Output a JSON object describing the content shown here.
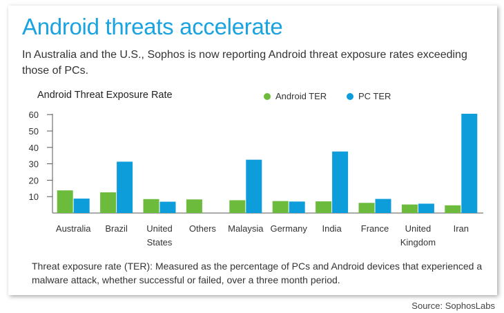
{
  "header": {
    "title": "Android threats accelerate",
    "subtitle": "In Australia and the U.S., Sophos is now reporting Android threat exposure rates exceeding those of PCs."
  },
  "chart_data": {
    "type": "bar",
    "title": "Android Threat Exposure Rate",
    "categories": [
      [
        "Australia"
      ],
      [
        "Brazil"
      ],
      [
        "United",
        "States"
      ],
      [
        "Others"
      ],
      [
        "Malaysia"
      ],
      [
        "Germany"
      ],
      [
        "India"
      ],
      [
        "France"
      ],
      [
        "United",
        "Kingdom"
      ],
      [
        "Iran"
      ]
    ],
    "series": [
      {
        "name": "Android TER",
        "color": "#6cbb3c",
        "values": [
          13.8,
          12.6,
          8.5,
          8.3,
          7.8,
          7.3,
          7.1,
          6.2,
          5.2,
          4.7
        ]
      },
      {
        "name": "PC TER",
        "color": "#0d9ddb",
        "values": [
          8.8,
          31.3,
          6.9,
          null,
          32.5,
          7.0,
          37.5,
          8.6,
          5.7,
          60.5
        ]
      }
    ],
    "yticks": [
      10,
      20,
      30,
      40,
      50,
      60
    ],
    "ylim": [
      0,
      63
    ],
    "grid": false,
    "legend": "top-right"
  },
  "footnote": "Threat exposure rate (TER): Measured as the percentage of PCs and Android devices that experienced a malware attack, whether successful or failed, over a three month period.",
  "source": "Source: SophosLabs"
}
